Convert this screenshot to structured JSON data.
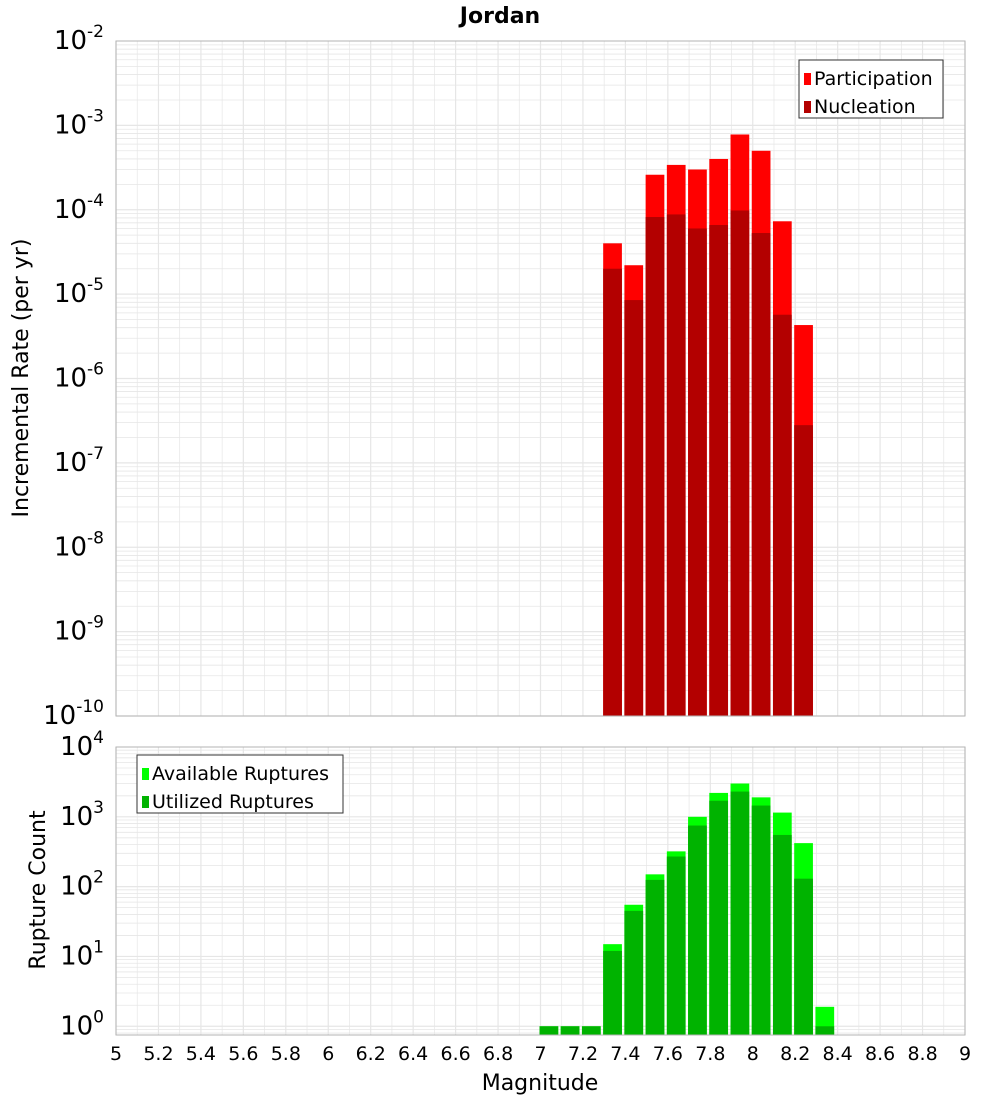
{
  "title": "Jordan",
  "xlabel": "Magnitude",
  "colors": {
    "participation": "#ff0000",
    "nucleation": "#b30000",
    "available": "#00ff00",
    "utilized": "#00b300",
    "grid": "#e6e6e6",
    "frame": "#b3b3b3"
  },
  "chart_data": [
    {
      "type": "bar",
      "title": "Jordan",
      "xlabel": "Magnitude",
      "ylabel": "Incremental Rate (per yr)",
      "yscale": "log",
      "xlim": [
        5,
        9
      ],
      "ylim": [
        1e-10,
        0.01
      ],
      "grid": true,
      "legend_position": "top-right",
      "x": [
        7.3,
        7.4,
        7.5,
        7.6,
        7.7,
        7.8,
        7.9,
        8.0,
        8.1,
        8.2
      ],
      "series": [
        {
          "name": "Participation",
          "color": "#ff0000",
          "values": [
            4e-05,
            2.2e-05,
            0.00026,
            0.00034,
            0.0003,
            0.0004,
            0.00078,
            0.0005,
            7.3e-05,
            4.3e-06
          ]
        },
        {
          "name": "Nucleation",
          "color": "#b30000",
          "values": [
            2e-05,
            8.5e-06,
            8.2e-05,
            8.8e-05,
            6e-05,
            6.6e-05,
            9.8e-05,
            5.3e-05,
            5.7e-06,
            2.8e-07
          ]
        }
      ]
    },
    {
      "type": "bar",
      "xlabel": "Magnitude",
      "ylabel": "Rupture Count",
      "yscale": "log",
      "xlim": [
        5,
        9
      ],
      "ylim": [
        0.75,
        10000.0
      ],
      "grid": true,
      "legend_position": "top-left",
      "x": [
        7.0,
        7.1,
        7.2,
        7.3,
        7.4,
        7.5,
        7.6,
        7.7,
        7.8,
        7.9,
        8.0,
        8.1,
        8.2,
        8.3
      ],
      "series": [
        {
          "name": "Available Ruptures",
          "color": "#00ff00",
          "values": [
            1,
            1,
            1,
            15,
            55,
            150,
            320,
            1000,
            2200,
            3000,
            1900,
            1150,
            420,
            1.9
          ]
        },
        {
          "name": "Utilized Ruptures",
          "color": "#00b300",
          "values": [
            1,
            1,
            1,
            12,
            45,
            125,
            270,
            750,
            1700,
            2300,
            1450,
            550,
            130,
            1
          ]
        }
      ]
    }
  ]
}
